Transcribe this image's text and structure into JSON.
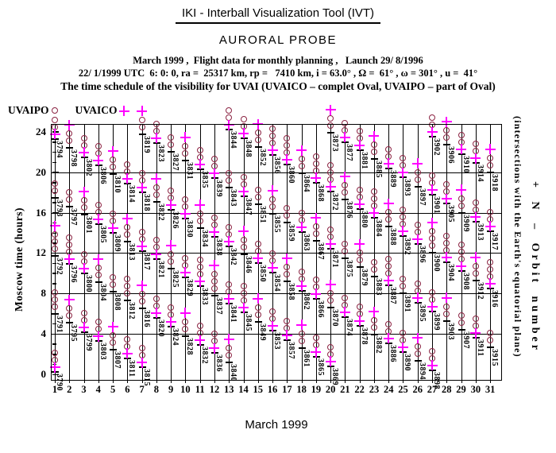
{
  "header": {
    "title": "IKI - Interball Visualization Tool (IVT)",
    "subtitle": "AURORAL PROBE",
    "info_line": "March 1999 ,  Flight data for monthly planning ,   Launch 29/ 8/1996",
    "orbit_params": "22/ 1/1999 UTC  6: 0: 0, ra =  25317 km, rp =   7410 km, i = 63.0° , Ω =  61° , ω = 301° , u =  41°",
    "schedule_line": "The time schedule of the visibility for UVAI (UVAICO – complet Oval, UVAIPO – part of Oval)"
  },
  "legend": {
    "uvaipo_label": "UVAIPO",
    "uvaico_label": "UVAICO"
  },
  "colors": {
    "circle_marker": "#8b2342",
    "plus_marker": "#ff00ff",
    "axis": "#000000"
  },
  "chart_data": {
    "type": "scatter",
    "title": "The time schedule of the visibility for UVAI",
    "xlabel": "March 1999",
    "ylabel": "Moscow time (hours)",
    "right_label_1": "+ N – Orbit number",
    "right_label_2": "(intersections with the Earth's equatorial plane)",
    "xlim": [
      1,
      31
    ],
    "ylim": [
      0,
      24
    ],
    "x_ticks": [
      1,
      2,
      3,
      4,
      5,
      6,
      7,
      8,
      9,
      10,
      11,
      12,
      13,
      14,
      15,
      16,
      17,
      18,
      19,
      20,
      21,
      22,
      23,
      24,
      25,
      26,
      27,
      28,
      29,
      30,
      31
    ],
    "y_ticks": [
      24,
      20,
      16,
      12,
      8,
      4,
      0
    ],
    "grid": true,
    "legend_position": "top-left",
    "series": [
      {
        "name": "UVAIPO",
        "marker": "circle",
        "meaning": "part of Oval visible"
      },
      {
        "name": "UVAICO",
        "marker": "plus",
        "meaning": "complete Oval visible"
      }
    ],
    "point_format": [
      "orbit_number",
      "day_of_month",
      "moscow_hour",
      "uvaipo_circle_count",
      "uvaico_plus"
    ],
    "points": [
      [
        3790,
        1,
        0.2,
        2,
        1
      ],
      [
        3791,
        1,
        6.0,
        3,
        0
      ],
      [
        3792,
        1,
        11.7,
        3,
        1
      ],
      [
        3793,
        1,
        17.5,
        2,
        0
      ],
      [
        3794,
        1,
        23.3,
        2,
        1
      ],
      [
        3795,
        2,
        5.1,
        2,
        1
      ],
      [
        3796,
        2,
        10.9,
        3,
        1
      ],
      [
        3797,
        2,
        16.6,
        2,
        0
      ],
      [
        3798,
        2,
        22.4,
        2,
        1
      ],
      [
        3799,
        3,
        4.2,
        2,
        1
      ],
      [
        3800,
        3,
        10.0,
        2,
        1
      ],
      [
        3801,
        3,
        15.8,
        2,
        1
      ],
      [
        3802,
        3,
        21.5,
        2,
        1
      ],
      [
        3803,
        4,
        3.3,
        2,
        1
      ],
      [
        3804,
        4,
        9.1,
        2,
        1
      ],
      [
        3805,
        4,
        14.9,
        2,
        1
      ],
      [
        3806,
        4,
        20.7,
        2,
        1
      ],
      [
        3807,
        5,
        2.4,
        2,
        1
      ],
      [
        3808,
        5,
        8.2,
        2,
        0
      ],
      [
        3809,
        5,
        14.0,
        2,
        1
      ],
      [
        3810,
        5,
        19.8,
        2,
        1
      ],
      [
        3811,
        6,
        1.6,
        2,
        1
      ],
      [
        3812,
        6,
        7.3,
        3,
        0
      ],
      [
        3813,
        6,
        13.1,
        2,
        1
      ],
      [
        3814,
        6,
        18.9,
        2,
        1
      ],
      [
        3815,
        7,
        0.7,
        2,
        1
      ],
      [
        3816,
        7,
        6.5,
        2,
        1
      ],
      [
        3817,
        7,
        12.2,
        2,
        1
      ],
      [
        3818,
        7,
        18.0,
        2,
        1
      ],
      [
        3819,
        7,
        23.8,
        2,
        1
      ],
      [
        3820,
        8,
        5.6,
        2,
        1
      ],
      [
        3821,
        8,
        11.4,
        2,
        1
      ],
      [
        3822,
        8,
        17.1,
        2,
        1
      ],
      [
        3823,
        8,
        22.9,
        2,
        1
      ],
      [
        3824,
        9,
        4.7,
        2,
        1
      ],
      [
        3825,
        9,
        10.5,
        2,
        1
      ],
      [
        3826,
        9,
        16.3,
        2,
        1
      ],
      [
        3827,
        9,
        22.0,
        2,
        0
      ],
      [
        3828,
        10,
        3.8,
        2,
        1
      ],
      [
        3829,
        10,
        9.6,
        2,
        1
      ],
      [
        3830,
        10,
        15.4,
        2,
        1
      ],
      [
        3831,
        10,
        21.2,
        2,
        1
      ],
      [
        3832,
        11,
        2.9,
        2,
        1
      ],
      [
        3833,
        11,
        8.7,
        3,
        1
      ],
      [
        3834,
        11,
        14.5,
        2,
        1
      ],
      [
        3835,
        11,
        20.3,
        2,
        1
      ],
      [
        3836,
        12,
        2.1,
        2,
        1
      ],
      [
        3837,
        12,
        7.8,
        3,
        1
      ],
      [
        3838,
        12,
        13.6,
        2,
        1
      ],
      [
        3839,
        12,
        19.4,
        2,
        1
      ],
      [
        3840,
        13,
        1.2,
        2,
        1
      ],
      [
        3841,
        13,
        7.0,
        2,
        1
      ],
      [
        3842,
        13,
        12.7,
        2,
        1
      ],
      [
        3843,
        13,
        18.5,
        2,
        0
      ],
      [
        3844,
        13,
        24.2,
        2,
        1
      ],
      [
        3845,
        14,
        6.1,
        3,
        1
      ],
      [
        3846,
        14,
        11.9,
        2,
        1
      ],
      [
        3847,
        14,
        17.6,
        2,
        1
      ],
      [
        3848,
        14,
        23.4,
        2,
        1
      ],
      [
        3849,
        15,
        5.2,
        2,
        1
      ],
      [
        3850,
        15,
        11.0,
        2,
        1
      ],
      [
        3851,
        15,
        16.8,
        2,
        0
      ],
      [
        3852,
        15,
        22.5,
        2,
        1
      ],
      [
        3853,
        16,
        4.3,
        2,
        1
      ],
      [
        3854,
        16,
        10.1,
        2,
        1
      ],
      [
        3855,
        16,
        15.9,
        2,
        1
      ],
      [
        3856,
        16,
        21.7,
        3,
        1
      ],
      [
        3857,
        17,
        3.4,
        2,
        1
      ],
      [
        3858,
        17,
        9.2,
        2,
        1
      ],
      [
        3859,
        17,
        15.0,
        2,
        0
      ],
      [
        3860,
        17,
        20.8,
        3,
        1
      ],
      [
        3861,
        18,
        2.6,
        2,
        1
      ],
      [
        3862,
        18,
        8.3,
        2,
        1
      ],
      [
        3863,
        18,
        14.1,
        2,
        1
      ],
      [
        3864,
        18,
        19.9,
        2,
        1
      ],
      [
        3865,
        19,
        1.7,
        2,
        1
      ],
      [
        3866,
        19,
        7.5,
        2,
        1
      ],
      [
        3867,
        19,
        13.2,
        2,
        1
      ],
      [
        3868,
        19,
        19.0,
        3,
        1
      ],
      [
        3869,
        20,
        0.8,
        2,
        1
      ],
      [
        3870,
        20,
        6.6,
        2,
        1
      ],
      [
        3871,
        20,
        12.4,
        2,
        1
      ],
      [
        3872,
        20,
        18.1,
        3,
        1
      ],
      [
        3873,
        20,
        23.9,
        2,
        1
      ],
      [
        3874,
        21,
        5.7,
        2,
        1
      ],
      [
        3875,
        21,
        11.5,
        2,
        0
      ],
      [
        3876,
        21,
        17.3,
        2,
        1
      ],
      [
        3877,
        21,
        23.0,
        2,
        1
      ],
      [
        3878,
        22,
        4.8,
        2,
        1
      ],
      [
        3879,
        22,
        10.6,
        2,
        1
      ],
      [
        3880,
        22,
        16.4,
        2,
        1
      ],
      [
        3881,
        22,
        22.2,
        2,
        1
      ],
      [
        3882,
        23,
        3.9,
        2,
        1
      ],
      [
        3883,
        23,
        9.7,
        2,
        0
      ],
      [
        3884,
        23,
        15.5,
        3,
        1
      ],
      [
        3885,
        23,
        21.3,
        2,
        1
      ],
      [
        3886,
        24,
        3.1,
        2,
        1
      ],
      [
        3887,
        24,
        8.8,
        3,
        1
      ],
      [
        3888,
        24,
        14.6,
        2,
        1
      ],
      [
        3889,
        24,
        20.4,
        2,
        1
      ],
      [
        3890,
        25,
        2.2,
        2,
        1
      ],
      [
        3891,
        25,
        8.0,
        2,
        0
      ],
      [
        3892,
        25,
        13.7,
        3,
        1
      ],
      [
        3893,
        25,
        19.5,
        2,
        1
      ],
      [
        3894,
        26,
        1.3,
        2,
        1
      ],
      [
        3895,
        26,
        7.1,
        2,
        1
      ],
      [
        3896,
        26,
        12.9,
        2,
        1
      ],
      [
        3897,
        26,
        18.6,
        2,
        1
      ],
      [
        3898,
        27,
        0.4,
        2,
        1
      ],
      [
        3899,
        27,
        6.2,
        2,
        1
      ],
      [
        3900,
        27,
        12.0,
        3,
        1
      ],
      [
        3901,
        27,
        17.8,
        2,
        1
      ],
      [
        3902,
        27,
        23.5,
        2,
        1
      ],
      [
        3903,
        28,
        5.3,
        2,
        1
      ],
      [
        3904,
        28,
        11.1,
        3,
        1
      ],
      [
        3905,
        28,
        16.9,
        2,
        1
      ],
      [
        3906,
        28,
        22.7,
        2,
        1
      ],
      [
        3907,
        29,
        4.4,
        2,
        0
      ],
      [
        3908,
        29,
        10.2,
        3,
        1
      ],
      [
        3909,
        29,
        16.0,
        2,
        1
      ],
      [
        3910,
        29,
        21.8,
        2,
        1
      ],
      [
        3911,
        30,
        3.6,
        2,
        1
      ],
      [
        3912,
        30,
        9.3,
        2,
        1
      ],
      [
        3913,
        30,
        15.1,
        2,
        1
      ],
      [
        3914,
        30,
        20.9,
        2,
        1
      ],
      [
        3915,
        31,
        2.7,
        2,
        0
      ],
      [
        3916,
        31,
        8.5,
        3,
        1
      ],
      [
        3917,
        31,
        14.2,
        2,
        1
      ],
      [
        3918,
        31,
        20.0,
        2,
        1
      ]
    ]
  }
}
